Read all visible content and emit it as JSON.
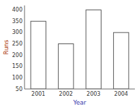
{
  "chart_data": {
    "type": "bar",
    "categories": [
      "2001",
      "2002",
      "2003",
      "2004"
    ],
    "values": [
      350,
      250,
      400,
      300
    ],
    "color": "#ffffff",
    "xlabel": "Year",
    "ylabel": "Runs",
    "ylim": [
      50,
      420
    ],
    "yticks": [
      50,
      100,
      150,
      200,
      250,
      300,
      350,
      400
    ],
    "grid": false
  }
}
